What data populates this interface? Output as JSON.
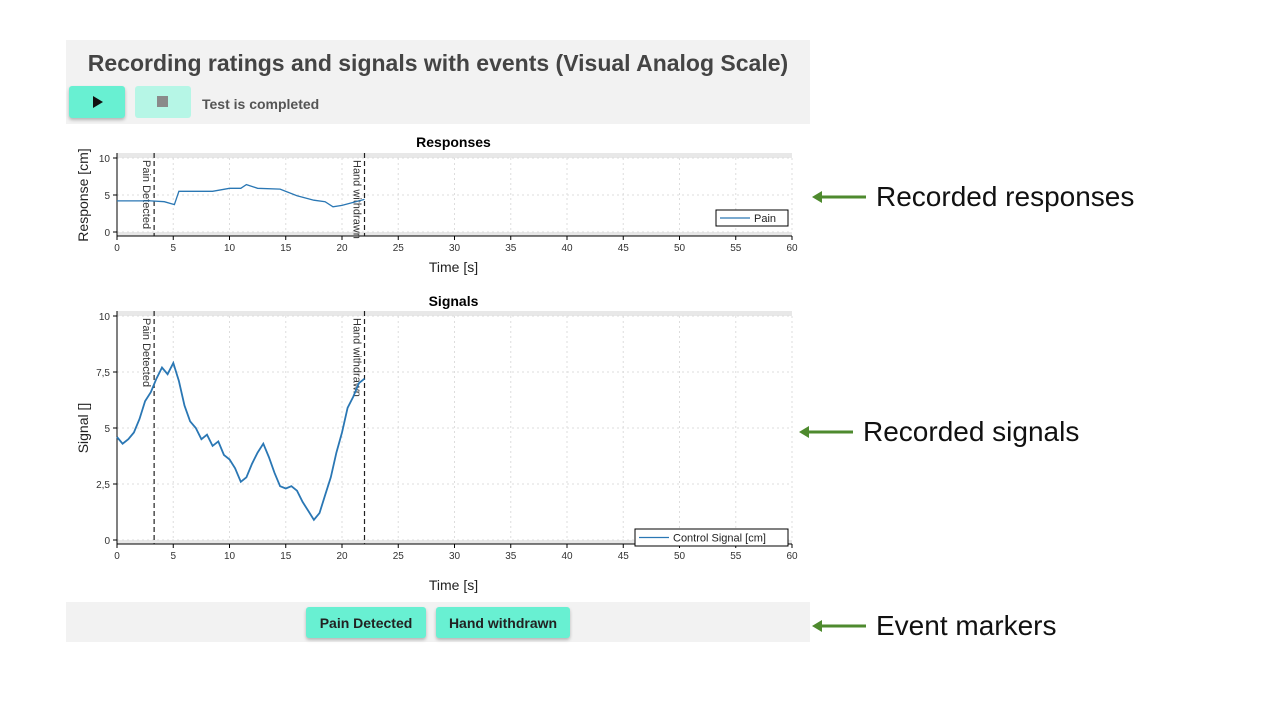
{
  "header": {
    "title": "Recording ratings and signals with events (Visual Analog Scale)",
    "status": "Test is completed"
  },
  "colors": {
    "accent": "#68f0d2",
    "series": "#2a77b4",
    "annotation_arrow": "#4e8a2e"
  },
  "icons": {
    "play": "play-icon",
    "stop": "stop-icon",
    "arrow": "arrow-left-icon"
  },
  "events": {
    "buttons": [
      "Pain Detected",
      "Hand withdrawn"
    ],
    "markers": [
      {
        "label": "Pain Detected",
        "t": 3.3
      },
      {
        "label": "Hand withdrawn",
        "t": 22.0
      }
    ]
  },
  "annotations": [
    "Recorded responses",
    "Recorded signals",
    "Event markers"
  ],
  "chart_data": [
    {
      "type": "line",
      "title": "Responses",
      "xlabel": "Time [s]",
      "ylabel": "Response [cm]",
      "xlim": [
        0,
        60
      ],
      "ylim": [
        0,
        10
      ],
      "xticks": [
        "0",
        "5",
        "10",
        "15",
        "20",
        "25",
        "30",
        "35",
        "40",
        "45",
        "50",
        "55",
        "60"
      ],
      "yticks": [
        "0",
        "5",
        "10"
      ],
      "legend": "bottom-right",
      "series": [
        {
          "name": "Pain",
          "x": [
            0,
            3,
            4.2,
            5.1,
            5.5,
            6.5,
            8.5,
            10,
            11,
            11.5,
            12.5,
            14.5,
            16,
            17.5,
            18.5,
            19.2,
            20,
            21,
            22
          ],
          "y": [
            4.2,
            4.2,
            4.1,
            3.7,
            5.5,
            5.5,
            5.5,
            5.9,
            5.9,
            6.4,
            5.9,
            5.8,
            4.9,
            4.3,
            4.1,
            3.4,
            3.6,
            4.0,
            4.4
          ]
        }
      ]
    },
    {
      "type": "line",
      "title": "Signals",
      "xlabel": "Time [s]",
      "ylabel": "Signal []",
      "xlim": [
        0,
        60
      ],
      "ylim": [
        0,
        10
      ],
      "xticks": [
        "0",
        "5",
        "10",
        "15",
        "20",
        "25",
        "30",
        "35",
        "40",
        "45",
        "50",
        "55",
        "60"
      ],
      "yticks": [
        "0",
        "2,5",
        "5",
        "7,5",
        "10"
      ],
      "legend": "bottom-right",
      "series": [
        {
          "name": "Control Signal [cm]",
          "x": [
            0,
            0.5,
            1,
            1.5,
            2,
            2.5,
            3,
            3.5,
            4,
            4.5,
            5,
            5.5,
            6,
            6.5,
            7,
            7.5,
            8,
            8.5,
            9,
            9.5,
            10,
            10.5,
            11,
            11.5,
            12,
            12.5,
            13,
            13.5,
            14,
            14.5,
            15,
            15.5,
            16,
            16.5,
            17,
            17.5,
            18,
            18.5,
            19,
            19.5,
            20,
            20.5,
            21,
            21.5,
            22
          ],
          "y": [
            4.6,
            4.3,
            4.5,
            4.8,
            5.4,
            6.2,
            6.6,
            7.2,
            7.7,
            7.4,
            7.9,
            7.1,
            6.0,
            5.3,
            5.0,
            4.5,
            4.7,
            4.2,
            4.4,
            3.8,
            3.6,
            3.2,
            2.6,
            2.8,
            3.4,
            3.9,
            4.3,
            3.7,
            3.0,
            2.4,
            2.3,
            2.4,
            2.2,
            1.7,
            1.3,
            0.9,
            1.2,
            2.0,
            2.8,
            3.9,
            4.8,
            5.9,
            6.4,
            7.0,
            7.2
          ]
        }
      ]
    }
  ]
}
